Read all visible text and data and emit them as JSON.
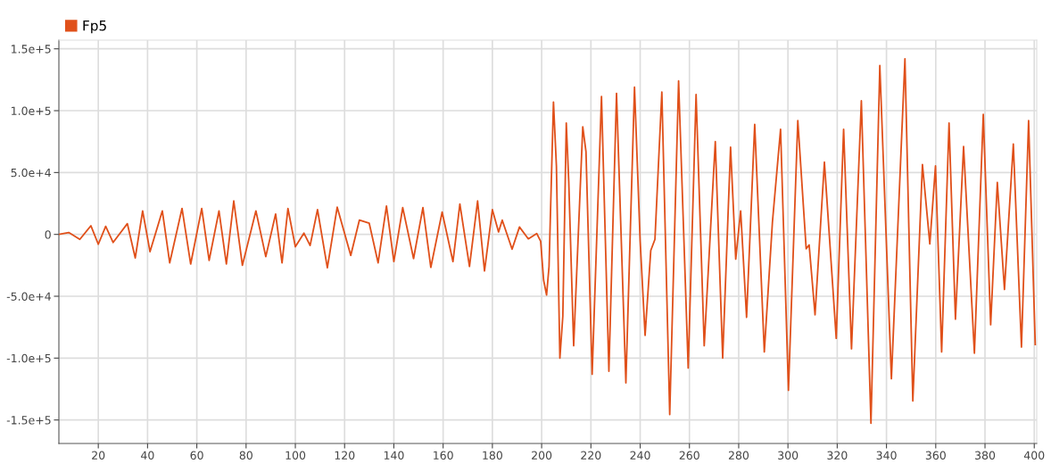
{
  "chart_data": {
    "type": "line",
    "xlim": [
      4,
      401
    ],
    "ylim": [
      -169000,
      157000
    ],
    "xticks": [
      20,
      40,
      60,
      80,
      100,
      120,
      140,
      160,
      180,
      200,
      220,
      240,
      260,
      280,
      300,
      320,
      340,
      360,
      380,
      400
    ],
    "yticks": [
      {
        "value": 150000,
        "label": "1.5e+5"
      },
      {
        "value": 100000,
        "label": "1.0e+5"
      },
      {
        "value": 50000,
        "label": "5.0e+4"
      },
      0,
      {
        "value": -50000,
        "label": "-5.0e+4"
      },
      {
        "value": -100000,
        "label": "-1.0e+5"
      },
      {
        "value": -150000,
        "label": "-1.5e+5"
      }
    ],
    "grid": true,
    "legend": "top left",
    "line_style": "solid",
    "series": [
      {
        "name": "Fp5",
        "color": "#e0501a",
        "x": [
          4,
          8,
          12.5,
          17,
          20,
          23,
          26,
          31.8,
          35,
          38,
          41,
          46,
          49,
          54,
          57.5,
          62,
          65,
          69,
          72,
          75,
          78.5,
          84,
          88,
          92,
          94.6,
          97,
          100,
          103.5,
          106,
          109,
          113,
          117,
          122.5,
          126,
          130,
          133.6,
          137,
          140,
          143.6,
          148,
          151.8,
          155,
          159.6,
          164,
          166.8,
          170.7,
          174,
          176.8,
          180,
          182.5,
          184,
          188,
          191,
          194.6,
          198,
          199.6,
          200.8,
          202,
          203,
          204.8,
          206,
          207.4,
          208.6,
          210,
          211,
          213,
          216.7,
          218,
          220.5,
          224.3,
          227.3,
          230.4,
          234.2,
          237.7,
          240,
          242,
          244.3,
          246,
          248.8,
          252,
          255.6,
          259.5,
          262.7,
          266,
          270.5,
          273.5,
          276.7,
          278.8,
          280.8,
          283.2,
          286.5,
          290.4,
          293.7,
          297,
          300.2,
          304,
          307.4,
          308.6,
          311,
          314.8,
          319.6,
          322.6,
          325.8,
          329.8,
          333.7,
          337.3,
          342,
          347.5,
          350.7,
          354.6,
          357.6,
          359.9,
          362.4,
          365.4,
          368,
          371.3,
          375.7,
          379.3,
          382.3,
          385,
          387.9,
          391.5,
          394.8,
          397.7,
          400.4
        ],
        "values": [
          0,
          1500,
          -4000,
          7000,
          -8000,
          6500,
          -6500,
          8700,
          -19000,
          19000,
          -14000,
          19000,
          -23000,
          21000,
          -24000,
          21000,
          -21000,
          19000,
          -24000,
          27000,
          -25000,
          19000,
          -18000,
          16500,
          -23000,
          21000,
          -10000,
          1000,
          -9000,
          20000,
          -27000,
          22000,
          -17000,
          11500,
          9000,
          -23000,
          23000,
          -22000,
          21600,
          -19500,
          21600,
          -26700,
          18000,
          -22000,
          24500,
          -26000,
          27000,
          -29600,
          20000,
          2000,
          11500,
          -12000,
          6000,
          -3600,
          700,
          -5500,
          -37000,
          -49000,
          -26000,
          107000,
          55000,
          -100000,
          -66000,
          90000,
          43000,
          -90000,
          87000,
          67000,
          -113000,
          111500,
          -110600,
          114000,
          -120000,
          119000,
          -5500,
          -81600,
          -13000,
          -4000,
          115000,
          -145600,
          124000,
          -108000,
          113000,
          -90000,
          75000,
          -100000,
          70500,
          -20000,
          19000,
          -67000,
          89000,
          -95000,
          10000,
          85000,
          -126000,
          92000,
          -11600,
          -8500,
          -65000,
          58400,
          -84000,
          85000,
          -92500,
          108000,
          -152600,
          136500,
          -116600,
          142000,
          -134600,
          56500,
          -7700,
          55300,
          -95000,
          90000,
          -68500,
          71000,
          -96000,
          97000,
          -73000,
          42000,
          -44500,
          73000,
          -91000,
          92000,
          -89000
        ]
      }
    ]
  }
}
